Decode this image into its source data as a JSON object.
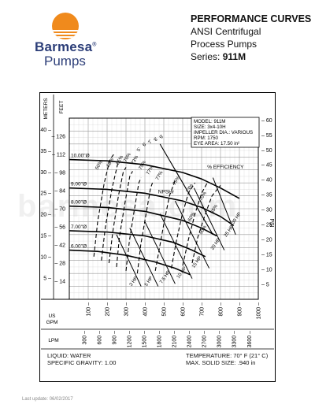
{
  "brand": {
    "name_top": "Barmesa",
    "name_bottom": "Pumps",
    "reg": "®"
  },
  "header": {
    "title": "PERFORMANCE CURVES",
    "line2": "ANSI Centrifugal",
    "line3": "Process Pumps",
    "series_label": "Series:",
    "series_value": "911M"
  },
  "spec_box": {
    "model": "MODEL: 911M",
    "size": "SIZE: 3x4-10H",
    "impeller": "IMPELLER DIA.: VARIOUS",
    "rpm": "RPM: 1750",
    "eye_area": "EYE AREA: 17.50 in²"
  },
  "watermark": "barmesa.com",
  "axis_labels": {
    "meters": "METERS",
    "feet": "FEET",
    "psi": "PSI",
    "us_gpm": "US GPM",
    "lpm": "LPM",
    "efficiency": "% EFFICIENCY",
    "npshr": "NPSHr"
  },
  "liquid": {
    "liquid": "LIQUID: WATER",
    "sg": "SPECIFIC GRAVITY: 1.00",
    "temp": "TEMPERATURE: 70° F (21° C)",
    "solids": "MAX. SOLID SIZE: .940 in"
  },
  "footer": "Last update: 06/02/2017",
  "chart_data": {
    "type": "line",
    "xlabel": "US GPM",
    "ylabel": "FEET",
    "x_ticks": [
      100,
      200,
      300,
      400,
      500,
      600,
      700,
      800,
      900,
      1000
    ],
    "lpm_ticks": [
      "300",
      "600",
      "900",
      "1200",
      "1500",
      "1800",
      "2100",
      "2400",
      "2700",
      "3000",
      "3300",
      "3600"
    ],
    "feet_ticks": [
      14,
      28,
      42,
      56,
      70,
      84,
      98,
      112,
      126
    ],
    "meter_ticks": [
      5,
      10,
      15,
      20,
      25,
      30,
      35,
      40
    ],
    "psi_ticks": [
      5,
      10,
      15,
      20,
      25,
      30,
      35,
      40,
      45,
      50,
      55,
      60
    ],
    "xlim": [
      0,
      1000
    ],
    "ylim": [
      0,
      140
    ],
    "series": [
      {
        "name": "10.00\"Ø",
        "x": [
          0,
          200,
          400,
          600,
          700,
          800,
          900
        ],
        "y": [
          108,
          107,
          104,
          98,
          93,
          86,
          78
        ]
      },
      {
        "name": "9.00\"Ø",
        "x": [
          0,
          200,
          400,
          600,
          700,
          800,
          870
        ],
        "y": [
          86,
          85,
          82,
          76,
          71,
          64,
          57
        ]
      },
      {
        "name": "8.00\"Ø",
        "x": [
          0,
          200,
          400,
          600,
          700,
          780
        ],
        "y": [
          72,
          71,
          68,
          61,
          55,
          49
        ]
      },
      {
        "name": "7.00\"Ø",
        "x": [
          0,
          200,
          400,
          550,
          650,
          720
        ],
        "y": [
          53,
          52,
          49,
          44,
          38,
          33
        ]
      },
      {
        "name": "6.00\"Ø",
        "x": [
          0,
          150,
          300,
          450,
          560,
          640
        ],
        "y": [
          38,
          37,
          34,
          29,
          24,
          19
        ]
      }
    ],
    "efficiency_labels": [
      "50%",
      "60%",
      "65%",
      "70%",
      "73%",
      "75%",
      "77%",
      "77%",
      "75%",
      "73%",
      "70%",
      "65%",
      "60%",
      "50%"
    ],
    "hp_labels": [
      "3 HP",
      "5 HP",
      "7.5 HP",
      "10 HP",
      "15 HP",
      "20 HP",
      "25 HP",
      "30 HP"
    ],
    "npsh_labels": [
      "5'",
      "6'",
      "7'",
      "8'",
      "9'"
    ]
  }
}
